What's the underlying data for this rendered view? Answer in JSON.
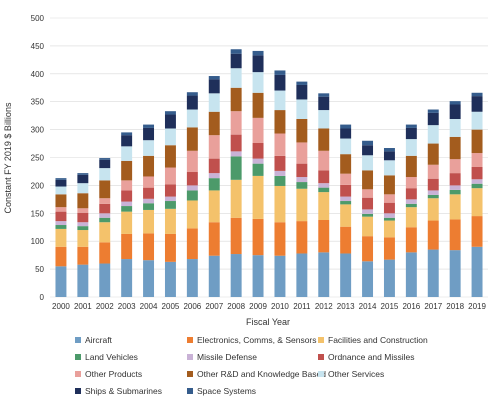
{
  "chart_data": {
    "type": "bar",
    "stacked": true,
    "xlabel": "Fiscal Year",
    "ylabel": "Constant FY 2019 $ Billions",
    "ylim": [
      0,
      500
    ],
    "yticks": [
      0,
      50,
      100,
      150,
      200,
      250,
      300,
      350,
      400,
      450,
      500
    ],
    "grid": true,
    "legend_position": "bottom",
    "categories": [
      "2000",
      "2001",
      "2002",
      "2003",
      "2004",
      "2005",
      "2006",
      "2007",
      "2008",
      "2009",
      "2010",
      "2011",
      "2012",
      "2013",
      "2014",
      "2015",
      "2016",
      "2017",
      "2018",
      "2019"
    ],
    "series": [
      {
        "name": "Aircraft",
        "color": "#6f9dc4",
        "values": [
          55,
          58,
          60,
          68,
          66,
          63,
          68,
          74,
          77,
          75,
          74,
          78,
          80,
          78,
          64,
          67,
          80,
          85,
          84,
          90
        ]
      },
      {
        "name": "Electronics, Comms, & Sensors",
        "color": "#ed7d31",
        "values": [
          35,
          32,
          38,
          45,
          48,
          50,
          55,
          60,
          65,
          65,
          60,
          58,
          58,
          48,
          45,
          40,
          45,
          52,
          55,
          55
        ]
      },
      {
        "name": "Facilities and Construction",
        "color": "#f4c26b",
        "values": [
          32,
          30,
          36,
          40,
          42,
          45,
          50,
          57,
          68,
          77,
          65,
          58,
          50,
          40,
          35,
          30,
          36,
          40,
          45,
          50
        ]
      },
      {
        "name": "Land Vehicles",
        "color": "#4c9a6a",
        "values": [
          7,
          7,
          8,
          10,
          12,
          14,
          18,
          22,
          42,
          22,
          18,
          12,
          8,
          6,
          5,
          5,
          6,
          6,
          8,
          8
        ]
      },
      {
        "name": "Missile Defense",
        "color": "#c9b2d6",
        "values": [
          7,
          7,
          8,
          8,
          8,
          8,
          9,
          9,
          9,
          9,
          9,
          9,
          8,
          8,
          8,
          8,
          8,
          8,
          8,
          8
        ]
      },
      {
        "name": "Ordnance and Missiles",
        "color": "#c0504d",
        "values": [
          17,
          17,
          17,
          20,
          20,
          22,
          24,
          26,
          30,
          28,
          27,
          24,
          23,
          21,
          21,
          19,
          20,
          21,
          22,
          22
        ]
      },
      {
        "name": "Other Products",
        "color": "#e9a09b",
        "values": [
          8,
          8,
          10,
          18,
          20,
          30,
          38,
          42,
          42,
          45,
          40,
          38,
          35,
          20,
          15,
          15,
          20,
          25,
          25,
          25
        ]
      },
      {
        "name": "Other R&D and Knowledge Based",
        "color": "#a35c1e",
        "values": [
          23,
          27,
          32,
          35,
          37,
          40,
          42,
          42,
          42,
          45,
          42,
          42,
          40,
          35,
          34,
          34,
          38,
          38,
          40,
          42
        ]
      },
      {
        "name": "Other Services",
        "color": "#c7e4ef",
        "values": [
          14,
          18,
          22,
          26,
          28,
          30,
          32,
          33,
          35,
          37,
          35,
          35,
          33,
          28,
          27,
          27,
          30,
          33,
          32,
          32
        ]
      },
      {
        "name": "Ships & Submarines",
        "color": "#1f2f5a",
        "values": [
          12,
          15,
          15,
          20,
          22,
          25,
          25,
          25,
          26,
          30,
          28,
          26,
          24,
          18,
          18,
          16,
          20,
          22,
          26,
          28
        ]
      },
      {
        "name": "Space Systems",
        "color": "#355c8c",
        "values": [
          3,
          3,
          3,
          5,
          6,
          6,
          6,
          6,
          8,
          8,
          8,
          6,
          6,
          7,
          8,
          6,
          6,
          6,
          6,
          6
        ]
      }
    ]
  }
}
